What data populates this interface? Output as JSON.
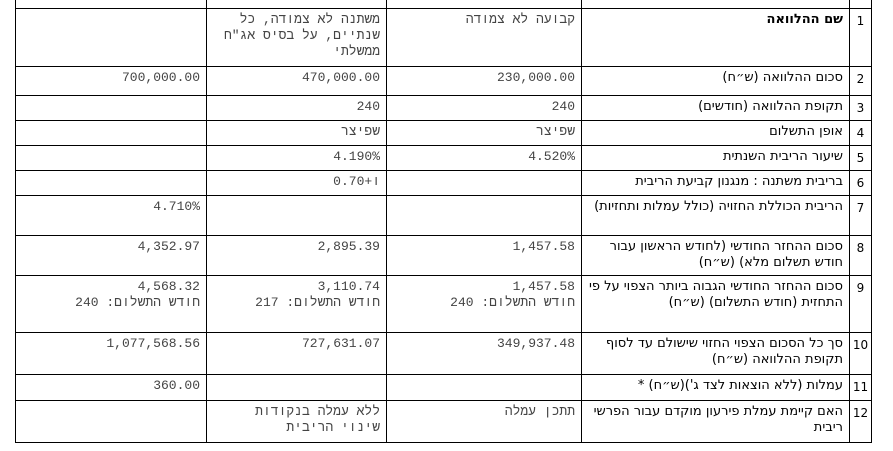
{
  "table": {
    "rows": [
      [
        "1",
        "שם ההלוואה",
        "קבועה לא צמודה",
        "משתנה לא צמודה, כל שנתיים, על בסיס אג\"ח ממשלתי",
        null
      ],
      [
        "2",
        "סכום ההלוואה (ש״ח)",
        "230,000.00",
        "470,000.00",
        "700,000.00"
      ],
      [
        "3",
        "תקופת ההלוואה (חודשים)",
        "240",
        "240",
        null
      ],
      [
        "4",
        "אופן התשלום",
        "שפיצר",
        "שפיצר",
        null
      ],
      [
        "5",
        "שיעור הריבית השנתית",
        "4.520%",
        "4.190%",
        null
      ],
      [
        "6",
        "בריבית משתנה : מנגנון קביעת הריבית",
        null,
        "ו+0.70",
        null
      ],
      [
        "7",
        "הריבית הכוללת החזויה (כולל עמלות ותחזיות)",
        null,
        null,
        "4.710%"
      ],
      [
        "8",
        "סכום ההחזר החודשי (לחודש הראשון עבור חודש תשלום מלא) (ש״ח)",
        "1,457.58",
        "2,895.39",
        "4,352.97"
      ],
      [
        "9",
        "סכום ההחזר החודשי הגבוה ביותר הצפוי על פי התחזית (חודש התשלום) (ש״ח)",
        [
          "1,457.58",
          "חודש התשלום: 240"
        ],
        [
          "3,110.74",
          "חודש התשלום: 217"
        ],
        [
          "4,568.32",
          "חודש התשלום: 240"
        ]
      ],
      [
        "10",
        "סך כל הסכום הצפוי החזוי שישולם עד לסוף תקופת ההלוואה (ש״ח)",
        "349,937.48",
        "727,631.07",
        "1,077,568.56"
      ],
      [
        "11",
        "עמלות (ללא הוצאות לצד ג')(ש״ח) *",
        null,
        null,
        "360.00"
      ],
      [
        "12",
        "האם קיימת עמלת פירעון מוקדם עבור הפרשי ריבית",
        "תתכן עמלה",
        "ללא עמלה בנקודות שינוי הריבית",
        null
      ]
    ]
  }
}
